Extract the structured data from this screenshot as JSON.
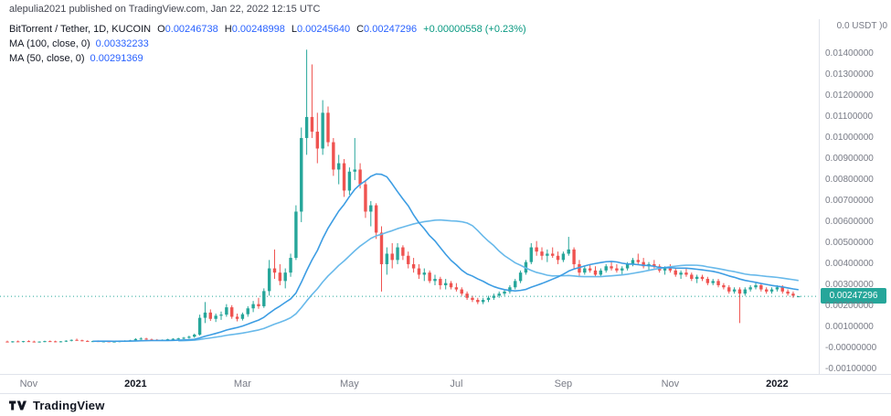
{
  "attribution": "alepulia2021 published on TradingView.com, Jan 22, 2022 12:15 UTC",
  "legend": {
    "symbol": "BitTorrent / Tether, 1D, KUCOIN",
    "o_label": "O",
    "o": "0.00246738",
    "h_label": "H",
    "h": "0.00248998",
    "l_label": "L",
    "l": "0.00245640",
    "c_label": "C",
    "c": "0.00247296",
    "change": "+0.00000558 (+0.23%)",
    "ma100_label": "MA (100, close, 0)",
    "ma100_value": "0.00332233",
    "ma50_label": "MA (50, close, 0)",
    "ma50_value": "0.00291369"
  },
  "price_axis": {
    "top_text": "0.0 USDT )0",
    "labels": [
      "0.01400000",
      "0.01300000",
      "0.01200000",
      "0.01100000",
      "0.01000000",
      "0.00900000",
      "0.00800000",
      "0.00700000",
      "0.00600000",
      "0.00500000",
      "0.00400000",
      "0.00300000",
      "0.00200000",
      "0.00100000",
      "-0.00000000",
      "-0.00100000"
    ],
    "current_price": "0.00247296"
  },
  "time_axis": [
    {
      "label": "Nov",
      "index": 4,
      "year": false
    },
    {
      "label": "2021",
      "index": 24,
      "year": true
    },
    {
      "label": "Mar",
      "index": 44,
      "year": false
    },
    {
      "label": "May",
      "index": 64,
      "year": false
    },
    {
      "label": "Jul",
      "index": 84,
      "year": false
    },
    {
      "label": "Sep",
      "index": 104,
      "year": false
    },
    {
      "label": "Nov",
      "index": 124,
      "year": false
    },
    {
      "label": "2022",
      "index": 144,
      "year": true
    }
  ],
  "footer": {
    "brand": "TradingView"
  },
  "colors": {
    "up": "#26a69a",
    "down": "#ef5350",
    "ma100": "#68b9ea",
    "ma50": "#3d9de3",
    "value_blue": "#2962ff",
    "change_green": "#089981",
    "axis_text": "#787b86",
    "text_dark": "#131722",
    "border": "#e0e3eb",
    "price_tag_bg": "#26a69a"
  },
  "chart_data": {
    "type": "candlestick",
    "title": "BitTorrent / Tether, 1D, KUCOIN",
    "symbol": "BTT/USDT",
    "interval": "1D",
    "exchange": "KUCOIN",
    "x_range": [
      "Nov 2020",
      "Jan 22 2022"
    ],
    "y_range": [
      -0.0017,
      0.0147
    ],
    "ylabel": "USDT",
    "grid": false,
    "legend_position": "top-left",
    "last_ohlc": {
      "o": 0.00246738,
      "h": 0.00248998,
      "l": 0.0024564,
      "c": 0.00247296,
      "change": 5.58e-06,
      "change_pct": 0.23
    },
    "overlays": [
      {
        "name": "MA (100, close, 0)",
        "value": 0.00332233,
        "period": 100,
        "render_period": 33,
        "color_key": "ma100",
        "data_name": "ma-100-line"
      },
      {
        "name": "MA (50, close, 0)",
        "value": 0.00291369,
        "period": 50,
        "render_period": 17,
        "color_key": "ma50",
        "data_name": "ma-50-line"
      }
    ],
    "candles": [
      [
        0.00032,
        0.00036,
        0.00028,
        0.0003
      ],
      [
        0.0003,
        0.00034,
        0.00027,
        0.00033
      ],
      [
        0.00033,
        0.00037,
        0.0003,
        0.00031
      ],
      [
        0.00031,
        0.00035,
        0.00028,
        0.00034
      ],
      [
        0.00034,
        0.00038,
        0.0003,
        0.00032
      ],
      [
        0.00032,
        0.00036,
        0.00029,
        0.0003
      ],
      [
        0.0003,
        0.00033,
        0.00027,
        0.00032
      ],
      [
        0.00032,
        0.00036,
        0.00029,
        0.00034
      ],
      [
        0.00034,
        0.00037,
        0.00031,
        0.00033
      ],
      [
        0.00033,
        0.00036,
        0.00029,
        0.00031
      ],
      [
        0.00031,
        0.00034,
        0.00028,
        0.00033
      ],
      [
        0.00033,
        0.00038,
        0.0003,
        0.00036
      ],
      [
        0.00036,
        0.00042,
        0.00033,
        0.0004
      ],
      [
        0.0004,
        0.00046,
        0.00036,
        0.00038
      ],
      [
        0.00038,
        0.00041,
        0.00033,
        0.00035
      ],
      [
        0.00035,
        0.00038,
        0.00031,
        0.00033
      ],
      [
        0.00033,
        0.00036,
        0.0003,
        0.00034
      ],
      [
        0.00034,
        0.00037,
        0.00031,
        0.00032
      ],
      [
        0.00032,
        0.00035,
        0.00029,
        0.00033
      ],
      [
        0.00033,
        0.00036,
        0.0003,
        0.00031
      ],
      [
        0.00031,
        0.00034,
        0.00028,
        0.00032
      ],
      [
        0.00032,
        0.00035,
        0.00029,
        0.00034
      ],
      [
        0.00034,
        0.00038,
        0.00031,
        0.00036
      ],
      [
        0.00036,
        0.0004,
        0.00033,
        0.00038
      ],
      [
        0.00038,
        0.00048,
        0.00035,
        0.00044
      ],
      [
        0.00044,
        0.00052,
        0.0004,
        0.00046
      ],
      [
        0.00046,
        0.0005,
        0.0004,
        0.00042
      ],
      [
        0.00042,
        0.00046,
        0.00038,
        0.0004
      ],
      [
        0.0004,
        0.00044,
        0.00036,
        0.00038
      ],
      [
        0.00038,
        0.00042,
        0.00035,
        0.0004
      ],
      [
        0.0004,
        0.00045,
        0.00037,
        0.00043
      ],
      [
        0.00043,
        0.00048,
        0.00039,
        0.00045
      ],
      [
        0.00045,
        0.0005,
        0.00041,
        0.00047
      ],
      [
        0.00047,
        0.00054,
        0.00043,
        0.0005
      ],
      [
        0.0005,
        0.0006,
        0.00046,
        0.00055
      ],
      [
        0.00055,
        0.0007,
        0.0005,
        0.00065
      ],
      [
        0.00065,
        0.0016,
        0.0006,
        0.00145
      ],
      [
        0.00145,
        0.0022,
        0.0012,
        0.0017
      ],
      [
        0.0017,
        0.00185,
        0.0013,
        0.0014
      ],
      [
        0.0014,
        0.00165,
        0.00125,
        0.00155
      ],
      [
        0.00155,
        0.00175,
        0.00135,
        0.0016
      ],
      [
        0.0016,
        0.0021,
        0.0015,
        0.00195
      ],
      [
        0.00195,
        0.00205,
        0.0014,
        0.0015
      ],
      [
        0.0015,
        0.00165,
        0.00128,
        0.0014
      ],
      [
        0.0014,
        0.0017,
        0.00132,
        0.00162
      ],
      [
        0.00162,
        0.002,
        0.0015,
        0.0019
      ],
      [
        0.0019,
        0.00225,
        0.00172,
        0.0021
      ],
      [
        0.0021,
        0.0024,
        0.00188,
        0.002
      ],
      [
        0.002,
        0.00285,
        0.00192,
        0.00272
      ],
      [
        0.00272,
        0.0042,
        0.0025,
        0.0038
      ],
      [
        0.0038,
        0.0047,
        0.0033,
        0.0036
      ],
      [
        0.0036,
        0.004,
        0.003,
        0.0032
      ],
      [
        0.0032,
        0.0038,
        0.00285,
        0.0036
      ],
      [
        0.0036,
        0.0045,
        0.0034,
        0.0043
      ],
      [
        0.0043,
        0.0068,
        0.0042,
        0.0065
      ],
      [
        0.0065,
        0.0105,
        0.006,
        0.01
      ],
      [
        0.01,
        0.0142,
        0.0092,
        0.011
      ],
      [
        0.011,
        0.0135,
        0.01,
        0.0103
      ],
      [
        0.0103,
        0.0112,
        0.0088,
        0.0095
      ],
      [
        0.0095,
        0.0118,
        0.0092,
        0.0112
      ],
      [
        0.0112,
        0.0115,
        0.0096,
        0.0098
      ],
      [
        0.0098,
        0.01,
        0.0082,
        0.0085
      ],
      [
        0.0085,
        0.0092,
        0.0078,
        0.0088
      ],
      [
        0.0088,
        0.009,
        0.0072,
        0.0075
      ],
      [
        0.0075,
        0.0086,
        0.0073,
        0.0084
      ],
      [
        0.0084,
        0.01,
        0.008,
        0.0085
      ],
      [
        0.0085,
        0.0088,
        0.0076,
        0.0078
      ],
      [
        0.0078,
        0.008,
        0.0062,
        0.0065
      ],
      [
        0.0065,
        0.007,
        0.0058,
        0.0068
      ],
      [
        0.0068,
        0.0069,
        0.0052,
        0.0055
      ],
      [
        0.0055,
        0.0058,
        0.0027,
        0.004
      ],
      [
        0.004,
        0.0048,
        0.0035,
        0.0045
      ],
      [
        0.0045,
        0.005,
        0.0038,
        0.0042
      ],
      [
        0.0042,
        0.005,
        0.004,
        0.0048
      ],
      [
        0.0048,
        0.0049,
        0.0042,
        0.0044
      ],
      [
        0.0044,
        0.0046,
        0.0038,
        0.004
      ],
      [
        0.004,
        0.0043,
        0.0036,
        0.0038
      ],
      [
        0.0038,
        0.004,
        0.0033,
        0.0035
      ],
      [
        0.0035,
        0.0038,
        0.0032,
        0.0036
      ],
      [
        0.0036,
        0.0037,
        0.0031,
        0.0032
      ],
      [
        0.0032,
        0.0035,
        0.003,
        0.0033
      ],
      [
        0.0033,
        0.0034,
        0.0028,
        0.003
      ],
      [
        0.003,
        0.0033,
        0.0028,
        0.0031
      ],
      [
        0.0031,
        0.0032,
        0.0028,
        0.0029
      ],
      [
        0.0029,
        0.0031,
        0.0027,
        0.0028
      ],
      [
        0.0028,
        0.0029,
        0.0025,
        0.0026
      ],
      [
        0.0026,
        0.0027,
        0.0023,
        0.0024
      ],
      [
        0.0024,
        0.0025,
        0.0022,
        0.0023
      ],
      [
        0.0023,
        0.0024,
        0.0021,
        0.0022
      ],
      [
        0.0022,
        0.0024,
        0.0021,
        0.0023
      ],
      [
        0.0023,
        0.0025,
        0.0022,
        0.0024
      ],
      [
        0.0024,
        0.0026,
        0.0023,
        0.0025
      ],
      [
        0.0025,
        0.0027,
        0.0024,
        0.0026
      ],
      [
        0.0026,
        0.0028,
        0.0025,
        0.0027
      ],
      [
        0.0027,
        0.003,
        0.0026,
        0.0029
      ],
      [
        0.0029,
        0.0033,
        0.0028,
        0.0032
      ],
      [
        0.0032,
        0.0037,
        0.0031,
        0.0036
      ],
      [
        0.0036,
        0.0042,
        0.0035,
        0.0041
      ],
      [
        0.0041,
        0.005,
        0.004,
        0.0048
      ],
      [
        0.0048,
        0.0051,
        0.0044,
        0.0046
      ],
      [
        0.0046,
        0.0048,
        0.0042,
        0.0044
      ],
      [
        0.0044,
        0.0047,
        0.0041,
        0.0045
      ],
      [
        0.0045,
        0.0048,
        0.0043,
        0.0044
      ],
      [
        0.0044,
        0.0046,
        0.004,
        0.0042
      ],
      [
        0.0042,
        0.0046,
        0.0041,
        0.0045
      ],
      [
        0.0045,
        0.0053,
        0.0044,
        0.0047
      ],
      [
        0.0047,
        0.0048,
        0.0038,
        0.004
      ],
      [
        0.004,
        0.0042,
        0.0034,
        0.0036
      ],
      [
        0.0036,
        0.0039,
        0.0035,
        0.0038
      ],
      [
        0.0038,
        0.004,
        0.0036,
        0.0037
      ],
      [
        0.0037,
        0.0039,
        0.0034,
        0.0035
      ],
      [
        0.0035,
        0.0038,
        0.0034,
        0.0037
      ],
      [
        0.0037,
        0.004,
        0.0036,
        0.0039
      ],
      [
        0.0039,
        0.0041,
        0.0037,
        0.0038
      ],
      [
        0.0038,
        0.004,
        0.0036,
        0.0037
      ],
      [
        0.0037,
        0.0039,
        0.0035,
        0.0038
      ],
      [
        0.0038,
        0.0041,
        0.0037,
        0.004
      ],
      [
        0.004,
        0.0043,
        0.0039,
        0.0042
      ],
      [
        0.0042,
        0.0045,
        0.004,
        0.0041
      ],
      [
        0.0041,
        0.0043,
        0.0038,
        0.0039
      ],
      [
        0.0039,
        0.0041,
        0.0037,
        0.004
      ],
      [
        0.004,
        0.0042,
        0.0038,
        0.0039
      ],
      [
        0.0039,
        0.004,
        0.0036,
        0.0037
      ],
      [
        0.0037,
        0.0039,
        0.0035,
        0.0038
      ],
      [
        0.0038,
        0.004,
        0.0036,
        0.0037
      ],
      [
        0.0037,
        0.0038,
        0.0034,
        0.0035
      ],
      [
        0.0035,
        0.0037,
        0.0033,
        0.0036
      ],
      [
        0.0036,
        0.0038,
        0.0034,
        0.0035
      ],
      [
        0.0035,
        0.0036,
        0.0032,
        0.0033
      ],
      [
        0.0033,
        0.0035,
        0.0031,
        0.0034
      ],
      [
        0.0034,
        0.0035,
        0.0032,
        0.0033
      ],
      [
        0.0033,
        0.0034,
        0.003,
        0.0031
      ],
      [
        0.0031,
        0.0033,
        0.003,
        0.0032
      ],
      [
        0.0032,
        0.0033,
        0.0029,
        0.003
      ],
      [
        0.003,
        0.0031,
        0.0028,
        0.0029
      ],
      [
        0.0029,
        0.003,
        0.0026,
        0.0027
      ],
      [
        0.0027,
        0.0029,
        0.0026,
        0.0028
      ],
      [
        0.0028,
        0.0029,
        0.0012,
        0.0026
      ],
      [
        0.0026,
        0.0029,
        0.0025,
        0.0028
      ],
      [
        0.0028,
        0.003,
        0.0027,
        0.0029
      ],
      [
        0.0029,
        0.0031,
        0.0028,
        0.003
      ],
      [
        0.003,
        0.0031,
        0.0027,
        0.0028
      ],
      [
        0.0028,
        0.0029,
        0.0026,
        0.0027
      ],
      [
        0.0027,
        0.0029,
        0.0026,
        0.0028
      ],
      [
        0.0028,
        0.003,
        0.0027,
        0.0029
      ],
      [
        0.0029,
        0.003,
        0.0026,
        0.0027
      ],
      [
        0.0027,
        0.0028,
        0.0025,
        0.0026
      ],
      [
        0.0026,
        0.0027,
        0.0024,
        0.0025
      ],
      [
        0.0024674,
        0.00249,
        0.0024564,
        0.002473
      ]
    ]
  }
}
